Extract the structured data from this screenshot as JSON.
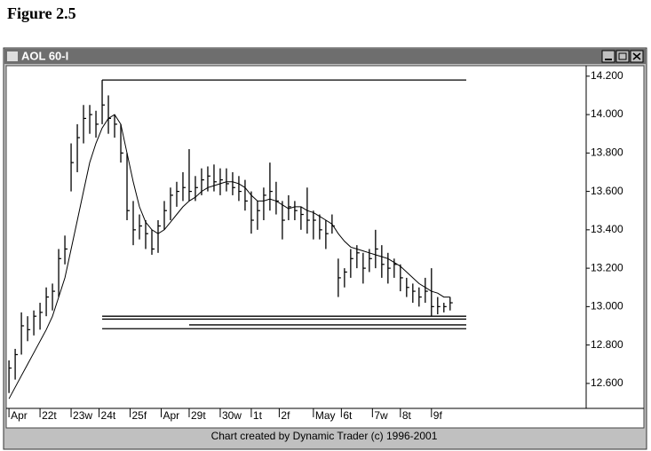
{
  "figure_label": "Figure 2.5",
  "chart_data": {
    "type": "hlc",
    "title": "AOL 60-I",
    "annotation": "Chart created by Dynamic Trader (c) 1996-2001",
    "color": "#000000",
    "x": [
      0,
      1,
      2,
      3,
      4,
      5,
      6,
      7,
      8,
      9,
      10,
      11,
      12,
      13,
      14,
      15,
      16,
      17,
      18,
      19,
      20,
      21,
      22,
      23,
      24,
      25,
      26,
      27,
      28,
      29,
      30,
      31,
      32,
      33,
      34,
      35,
      36,
      37,
      38,
      39,
      40,
      41,
      42,
      43,
      44,
      45,
      46,
      47,
      48,
      49,
      50,
      51,
      52,
      53,
      54,
      55,
      56,
      57,
      58,
      59,
      60,
      61,
      62,
      63,
      64,
      65,
      66,
      67,
      68,
      69,
      70,
      71
    ],
    "high": [
      12.72,
      12.78,
      12.97,
      12.95,
      12.98,
      13.02,
      13.1,
      13.12,
      13.3,
      13.37,
      13.85,
      13.95,
      14.05,
      14.05,
      14.02,
      14.18,
      14.1,
      14.0,
      13.95,
      13.8,
      13.55,
      13.48,
      13.45,
      13.4,
      13.45,
      13.55,
      13.62,
      13.65,
      13.7,
      13.82,
      13.68,
      13.72,
      13.73,
      13.74,
      13.72,
      13.72,
      13.7,
      13.68,
      13.66,
      13.6,
      13.55,
      13.62,
      13.75,
      13.65,
      13.55,
      13.58,
      13.55,
      13.52,
      13.62,
      13.5,
      13.48,
      13.45,
      13.48,
      13.25,
      13.2,
      13.3,
      13.32,
      13.28,
      13.3,
      13.4,
      13.32,
      13.28,
      13.25,
      13.22,
      13.15,
      13.12,
      13.1,
      13.15,
      13.2,
      13.05,
      13.02,
      13.05
    ],
    "low": [
      12.55,
      12.62,
      12.75,
      12.82,
      12.85,
      12.88,
      12.95,
      12.98,
      13.05,
      13.22,
      13.6,
      13.7,
      13.85,
      13.9,
      13.88,
      13.95,
      13.9,
      13.88,
      13.75,
      13.45,
      13.32,
      13.35,
      13.3,
      13.27,
      13.28,
      13.4,
      13.45,
      13.52,
      13.55,
      13.55,
      13.55,
      13.58,
      13.6,
      13.6,
      13.58,
      13.6,
      13.58,
      13.55,
      13.5,
      13.38,
      13.4,
      13.45,
      13.5,
      13.48,
      13.35,
      13.45,
      13.45,
      13.4,
      13.38,
      13.35,
      13.35,
      13.3,
      13.38,
      13.05,
      13.1,
      13.15,
      13.2,
      13.12,
      13.18,
      13.2,
      13.15,
      13.12,
      13.15,
      13.08,
      13.05,
      13.02,
      13.0,
      13.02,
      12.95,
      12.96,
      12.97,
      12.98
    ],
    "close": [
      12.68,
      12.75,
      12.9,
      12.88,
      12.95,
      12.97,
      13.05,
      13.08,
      13.25,
      13.3,
      13.75,
      13.88,
      13.98,
      14.0,
      13.95,
      14.05,
      13.98,
      13.95,
      13.8,
      13.5,
      13.4,
      13.42,
      13.38,
      13.3,
      13.42,
      13.5,
      13.58,
      13.6,
      13.62,
      13.6,
      13.62,
      13.66,
      13.68,
      13.65,
      13.66,
      13.64,
      13.62,
      13.6,
      13.55,
      13.45,
      13.5,
      13.58,
      13.6,
      13.55,
      13.45,
      13.52,
      13.5,
      13.48,
      13.45,
      13.45,
      13.4,
      13.38,
      13.42,
      13.15,
      13.18,
      13.25,
      13.28,
      13.2,
      13.25,
      13.3,
      13.22,
      13.2,
      13.22,
      13.15,
      13.1,
      13.08,
      13.05,
      13.08,
      13.0,
      13.0,
      13.0,
      13.02
    ],
    "ma": [
      12.52,
      12.58,
      12.64,
      12.7,
      12.76,
      12.82,
      12.88,
      12.95,
      13.05,
      13.15,
      13.3,
      13.45,
      13.6,
      13.75,
      13.85,
      13.93,
      13.98,
      14.0,
      13.95,
      13.8,
      13.65,
      13.52,
      13.44,
      13.4,
      13.38,
      13.4,
      13.44,
      13.48,
      13.52,
      13.55,
      13.57,
      13.6,
      13.62,
      13.63,
      13.64,
      13.65,
      13.65,
      13.64,
      13.62,
      13.58,
      13.55,
      13.55,
      13.56,
      13.55,
      13.53,
      13.51,
      13.52,
      13.52,
      13.5,
      13.49,
      13.47,
      13.45,
      13.43,
      13.38,
      13.34,
      13.31,
      13.3,
      13.29,
      13.28,
      13.27,
      13.26,
      13.25,
      13.23,
      13.21,
      13.18,
      13.15,
      13.12,
      13.1,
      13.08,
      13.07,
      13.05,
      13.05
    ],
    "levels": [
      {
        "value": 14.18,
        "x": [
          15,
          73.6
        ]
      },
      {
        "value": 12.95,
        "x": [
          15,
          73.6
        ]
      },
      {
        "value": 12.935,
        "x": [
          15,
          73.6
        ]
      },
      {
        "value": 12.905,
        "x": [
          29,
          73.6
        ]
      },
      {
        "value": 12.885,
        "x": [
          15,
          73.6
        ]
      }
    ],
    "xlim": [
      -0.3,
      92.9
    ],
    "xticks": [
      {
        "value": 0,
        "label": "Apr"
      },
      {
        "value": 5,
        "label": "22t"
      },
      {
        "value": 10,
        "label": "23w"
      },
      {
        "value": 14.5,
        "label": "24t"
      },
      {
        "value": 19.5,
        "label": "25f"
      },
      {
        "value": 24.5,
        "label": "Apr"
      },
      {
        "value": 29,
        "label": "29t"
      },
      {
        "value": 34,
        "label": "30w"
      },
      {
        "value": 39,
        "label": "1t"
      },
      {
        "value": 43.5,
        "label": "2f"
      },
      {
        "value": 49,
        "label": "May"
      },
      {
        "value": 53.5,
        "label": "6t"
      },
      {
        "value": 58.5,
        "label": "7w"
      },
      {
        "value": 63,
        "label": "8t"
      },
      {
        "value": 68,
        "label": "9f"
      }
    ],
    "ylim": [
      12.47,
      14.25
    ],
    "yticks": [
      {
        "value": 12.6,
        "label": "12.600"
      },
      {
        "value": 12.8,
        "label": "12.800"
      },
      {
        "value": 13.0,
        "label": "13.000"
      },
      {
        "value": 13.2,
        "label": "13.200"
      },
      {
        "value": 13.4,
        "label": "13.400"
      },
      {
        "value": 13.6,
        "label": "13.600"
      },
      {
        "value": 13.8,
        "label": "13.800"
      },
      {
        "value": 14.0,
        "label": "14.000"
      },
      {
        "value": 14.2,
        "label": "14.200"
      }
    ]
  }
}
